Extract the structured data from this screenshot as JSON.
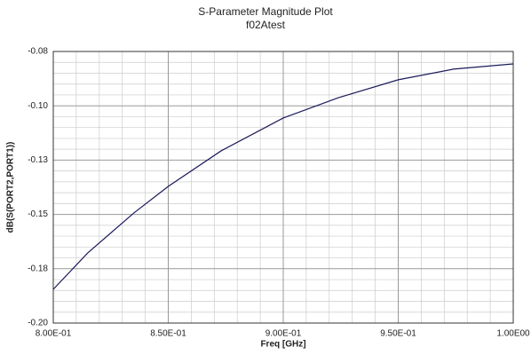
{
  "chart_data": {
    "type": "line",
    "title": "S-Parameter Magnitude Plot",
    "subtitle": "f02Atest",
    "x_label": "Freq [GHz]",
    "y_label": "dB(S(PORT2,PORT1))",
    "x": [
      0.8,
      0.815,
      0.835,
      0.85,
      0.873,
      0.9,
      0.924,
      0.95,
      0.974,
      1.0
    ],
    "series": [
      {
        "color": "#1a1a5a",
        "values": [
          -0.1851,
          -0.169,
          -0.1514,
          -0.1396,
          -0.1239,
          -0.1094,
          -0.1004,
          -0.0925,
          -0.0878,
          -0.0855
        ]
      }
    ],
    "xlim": [
      0.8,
      1.0
    ],
    "xticks": [
      {
        "value": 0.8,
        "label": "8.00E-01"
      },
      {
        "value": 0.85,
        "label": "8.50E-01"
      },
      {
        "value": 0.9,
        "label": "9.00E-01"
      },
      {
        "value": 0.95,
        "label": "9.50E-01"
      },
      {
        "value": 1.0,
        "label": "1.00E00"
      }
    ],
    "ylim": [
      -0.2,
      -0.08
    ],
    "yticks": [
      {
        "value": -0.2,
        "label": "-0.20"
      },
      {
        "value": -0.176,
        "label": "-0.18"
      },
      {
        "value": -0.152,
        "label": "-0.15"
      },
      {
        "value": -0.128,
        "label": "-0.13"
      },
      {
        "value": -0.104,
        "label": "-0.10"
      },
      -0.08
    ],
    "grid": true
  }
}
